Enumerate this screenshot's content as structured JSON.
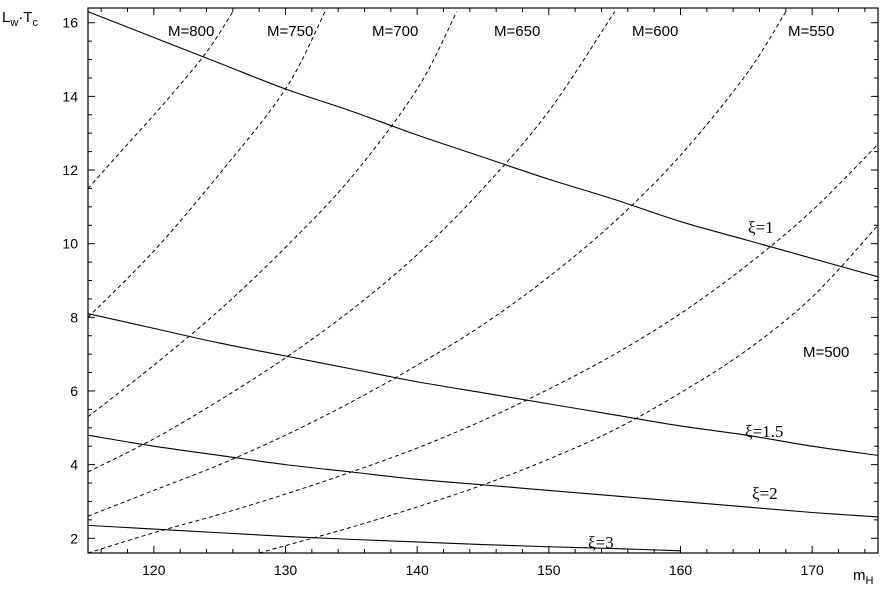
{
  "chart_data": {
    "type": "line",
    "title": "",
    "xlabel": "m_H",
    "ylabel": "L_w·T_c",
    "xlim": [
      115,
      175
    ],
    "ylim": [
      1.6,
      16.4
    ],
    "xticks": [
      120,
      130,
      140,
      150,
      160,
      170
    ],
    "yticks": [
      2,
      4,
      6,
      8,
      10,
      12,
      14,
      16
    ],
    "grid": false,
    "solid_series": [
      {
        "name": "ξ=1",
        "x": [
          115,
          120,
          125,
          130,
          135,
          140,
          145,
          150,
          155,
          160,
          165,
          170,
          175
        ],
        "y": [
          16.3,
          15.6,
          14.9,
          14.2,
          13.6,
          12.95,
          12.35,
          11.75,
          11.2,
          10.6,
          10.1,
          9.6,
          9.1
        ]
      },
      {
        "name": "ξ=1.5",
        "x": [
          115,
          120,
          125,
          130,
          135,
          140,
          145,
          150,
          155,
          160,
          165,
          170,
          175
        ],
        "y": [
          8.1,
          7.7,
          7.3,
          6.95,
          6.6,
          6.25,
          5.95,
          5.65,
          5.35,
          5.05,
          4.8,
          4.5,
          4.25
        ]
      },
      {
        "name": "ξ=2",
        "x": [
          115,
          120,
          125,
          130,
          135,
          140,
          145,
          150,
          155,
          160,
          165,
          170,
          175
        ],
        "y": [
          4.8,
          4.5,
          4.25,
          4.0,
          3.8,
          3.6,
          3.45,
          3.3,
          3.15,
          3.0,
          2.85,
          2.7,
          2.58
        ]
      },
      {
        "name": "ξ=3",
        "x": [
          115,
          120,
          125,
          130,
          135,
          140,
          145,
          150,
          155,
          160
        ],
        "y": [
          2.35,
          2.25,
          2.15,
          2.05,
          1.97,
          1.9,
          1.83,
          1.77,
          1.72,
          1.66
        ]
      }
    ],
    "dashed_series": [
      {
        "name": "M=800",
        "x": [
          115,
          118,
          121,
          124,
          126
        ],
        "y": [
          11.5,
          12.7,
          13.9,
          15.2,
          16.3
        ]
      },
      {
        "name": "M=750",
        "x": [
          115,
          120,
          125,
          130,
          133
        ],
        "y": [
          8.0,
          9.8,
          11.9,
          14.2,
          16.3
        ]
      },
      {
        "name": "M=700",
        "x": [
          115,
          120,
          125,
          130,
          135,
          140,
          143
        ],
        "y": [
          5.3,
          6.7,
          8.2,
          9.9,
          11.8,
          14.2,
          16.3
        ]
      },
      {
        "name": "M=650",
        "x": [
          115,
          120,
          125,
          130,
          135,
          140,
          145,
          150,
          155
        ],
        "y": [
          3.8,
          4.7,
          5.75,
          6.9,
          8.2,
          9.7,
          11.5,
          13.6,
          16.3
        ]
      },
      {
        "name": "M=600",
        "x": [
          115,
          120,
          125,
          130,
          135,
          140,
          145,
          150,
          155,
          160,
          165,
          168
        ],
        "y": [
          2.6,
          3.3,
          4.0,
          4.8,
          5.7,
          6.7,
          7.8,
          9.1,
          10.6,
          12.4,
          14.6,
          16.3
        ]
      },
      {
        "name": "M=550",
        "x": [
          115,
          120,
          125,
          130,
          135,
          140,
          145,
          150,
          155,
          160,
          165,
          170,
          175
        ],
        "y": [
          1.6,
          2.15,
          2.65,
          3.2,
          3.8,
          4.45,
          5.2,
          6.05,
          7.0,
          8.1,
          9.4,
          10.9,
          12.7
        ]
      },
      {
        "name": "M=500",
        "x": [
          128,
          130,
          135,
          140,
          145,
          150,
          155,
          160,
          165,
          170,
          175
        ],
        "y": [
          1.6,
          1.8,
          2.3,
          2.85,
          3.45,
          4.15,
          4.95,
          5.95,
          7.1,
          8.55,
          10.5
        ]
      }
    ],
    "curve_labels": {
      "xi1": "ξ=1",
      "xi15": "ξ=1.5",
      "xi2": "ξ=2",
      "xi3": "ξ=3",
      "m800": "M=800",
      "m750": "M=750",
      "m700": "M=700",
      "m650": "M=650",
      "m600": "M=600",
      "m550": "M=550",
      "m500": "M=500"
    }
  }
}
